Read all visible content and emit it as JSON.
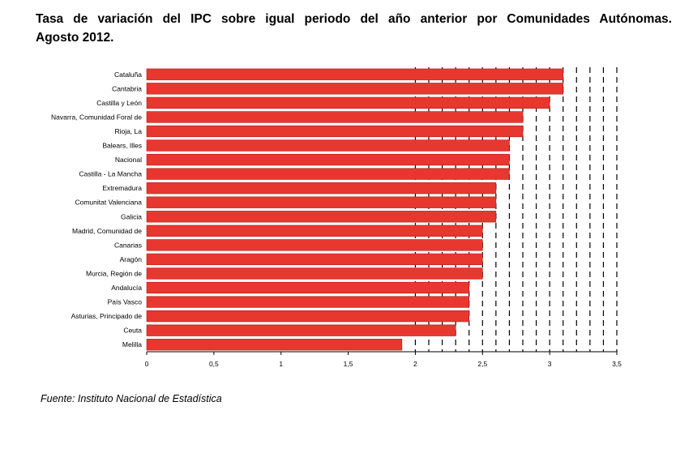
{
  "title_line1": "Tasa de variación del IPC sobre igual periodo del año anterior por Comunidades Autónomas.",
  "title_line2": "Agosto 2012.",
  "source": "Fuente: Instituto Nacional de Estadística",
  "chart_data": {
    "type": "bar",
    "orientation": "horizontal",
    "categories": [
      "Cataluña",
      "Cantabria",
      "Castilla y León",
      "Navarra, Comunidad Foral de",
      "Rioja, La",
      "Balears, Illes",
      "Nacional",
      "Castilla - La Mancha",
      "Extremadura",
      "Comunitat Valenciana",
      "Galicia",
      "Madrid, Comunidad de",
      "Canarias",
      "Aragón",
      "Murcia, Región de",
      "Andalucía",
      "País Vasco",
      "Asturias, Principado de",
      "Ceuta",
      "Melilla"
    ],
    "values": [
      3.1,
      3.1,
      3.0,
      2.8,
      2.8,
      2.7,
      2.7,
      2.7,
      2.6,
      2.6,
      2.6,
      2.5,
      2.5,
      2.5,
      2.5,
      2.4,
      2.4,
      2.4,
      2.3,
      1.9
    ],
    "xlim": [
      0,
      3.5
    ],
    "xticks": [
      "0",
      "0,5",
      "1",
      "1,5",
      "2",
      "2,5",
      "3",
      "3,5"
    ],
    "bar_color": "#e8372f",
    "grid": "dashed vertical lines"
  }
}
